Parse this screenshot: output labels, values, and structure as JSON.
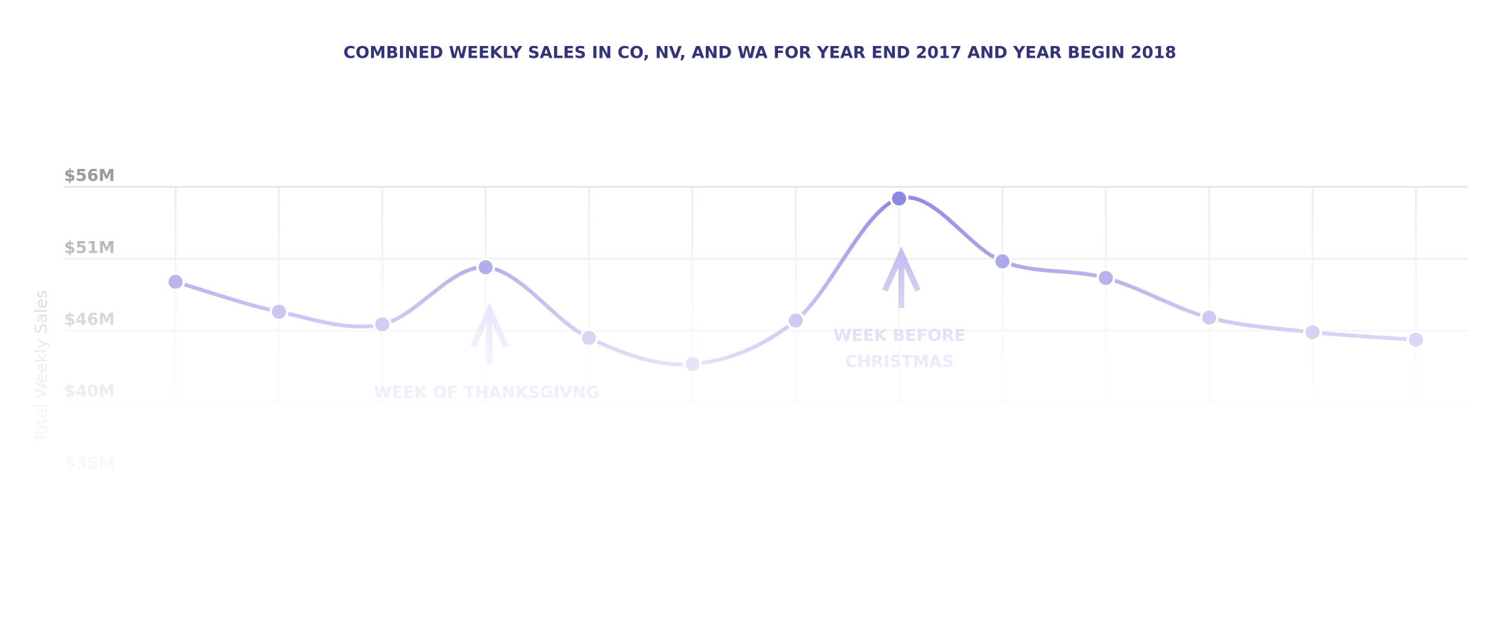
{
  "chart_data": {
    "type": "line",
    "title": "COMBINED WEEKLY SALES IN CO, NV, AND WA FOR YEAR END 2017 AND YEAR BEGIN 2018",
    "y_label": "Total Weekly Sales",
    "values": [
      49.07,
      46.88,
      45.96,
      50.13,
      44.97,
      43.06,
      46.24,
      55.15,
      50.56,
      49.35,
      46.45,
      45.39,
      44.83
    ],
    "color": "#8c87e0",
    "ylim": [
      35,
      56
    ],
    "yticks": [
      {
        "value": 56,
        "label": "$56M"
      },
      {
        "value": 50.75,
        "label": "$51M"
      },
      {
        "value": 45.5,
        "label": "$46M"
      },
      {
        "value": 40.25,
        "label": "$40M"
      },
      {
        "value": 35,
        "label": "$35M"
      }
    ],
    "grid": true,
    "annotations": [
      {
        "lines": [
          "WEEK OF THANKSGIVNG"
        ]
      },
      {
        "lines": [
          "WEEK BEFORE",
          "CHRISTMAS"
        ]
      }
    ]
  }
}
